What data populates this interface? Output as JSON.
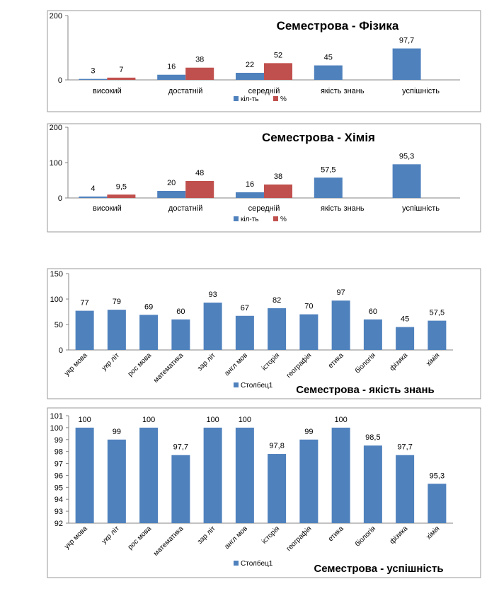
{
  "colors": {
    "blue": "#4F81BD",
    "red": "#C0504D",
    "axis": "#868686",
    "frame": "#9A9A9A",
    "text": "#000000"
  },
  "chart_data": [
    {
      "type": "bar",
      "title": "Семестрова  - Фізика",
      "categories": [
        "високий",
        "достатній",
        "середній",
        "якість знань",
        "успішність"
      ],
      "series": [
        {
          "name": "кіл-ть",
          "values": [
            3,
            16,
            22,
            45,
            97.7
          ],
          "labels": [
            "3",
            "16",
            "22",
            "45",
            "97,7"
          ]
        },
        {
          "name": "%",
          "values": [
            7,
            38,
            52,
            null,
            null
          ],
          "labels": [
            "7",
            "38",
            "52",
            "",
            ""
          ]
        }
      ],
      "ylim": [
        0,
        200
      ],
      "yticks": [
        "0",
        "200"
      ],
      "legend": "bottom"
    },
    {
      "type": "bar",
      "title": "Семестрова  - Хімія",
      "categories": [
        "високий",
        "достатній",
        "середній",
        "якість знань",
        "успішність"
      ],
      "series": [
        {
          "name": "кіл-ть",
          "values": [
            4,
            20,
            16,
            57.5,
            95.3
          ],
          "labels": [
            "4",
            "20",
            "16",
            "57,5",
            "95,3"
          ]
        },
        {
          "name": "%",
          "values": [
            9.5,
            48,
            38,
            null,
            null
          ],
          "labels": [
            "9,5",
            "48",
            "38",
            "",
            ""
          ]
        }
      ],
      "ylim": [
        0,
        200
      ],
      "yticks": [
        "0",
        "100",
        "200"
      ],
      "legend": "bottom"
    },
    {
      "type": "bar",
      "title": "Семестрова  - якість знань",
      "categories": [
        "укр мова",
        "укр літ",
        "рос мова",
        "математика",
        "зар літ",
        "англ мов",
        "історія",
        "географія",
        "етика",
        "біологія",
        "фізика",
        "хімія"
      ],
      "series": [
        {
          "name": "Столбец1",
          "values": [
            77,
            79,
            69,
            60,
            93,
            67,
            82,
            70,
            97,
            60,
            45,
            57.5
          ],
          "labels": [
            "77",
            "79",
            "69",
            "60",
            "93",
            "67",
            "82",
            "70",
            "97",
            "60",
            "45",
            "57,5"
          ]
        }
      ],
      "ylim": [
        0,
        150
      ],
      "yticks": [
        "0",
        "50",
        "100",
        "150"
      ],
      "legend": "bottom"
    },
    {
      "type": "bar",
      "title": "Семестрова  - успішність",
      "categories": [
        "укр мова",
        "укр літ",
        "рос мова",
        "математика",
        "зар літ",
        "англ мов",
        "історія",
        "географія",
        "етика",
        "біологія",
        "фізика",
        "хімія"
      ],
      "series": [
        {
          "name": "Столбец1",
          "values": [
            100,
            99,
            100,
            97.7,
            100,
            100,
            97.8,
            99,
            100,
            98.5,
            97.7,
            95.3
          ],
          "labels": [
            "100",
            "99",
            "100",
            "97,7",
            "100",
            "100",
            "97,8",
            "99",
            "100",
            "98,5",
            "97,7",
            "95,3"
          ]
        }
      ],
      "ylim": [
        92,
        101
      ],
      "yticks": [
        "92",
        "93",
        "94",
        "95",
        "96",
        "97",
        "98",
        "99",
        "100",
        "101"
      ],
      "legend": "bottom"
    }
  ]
}
